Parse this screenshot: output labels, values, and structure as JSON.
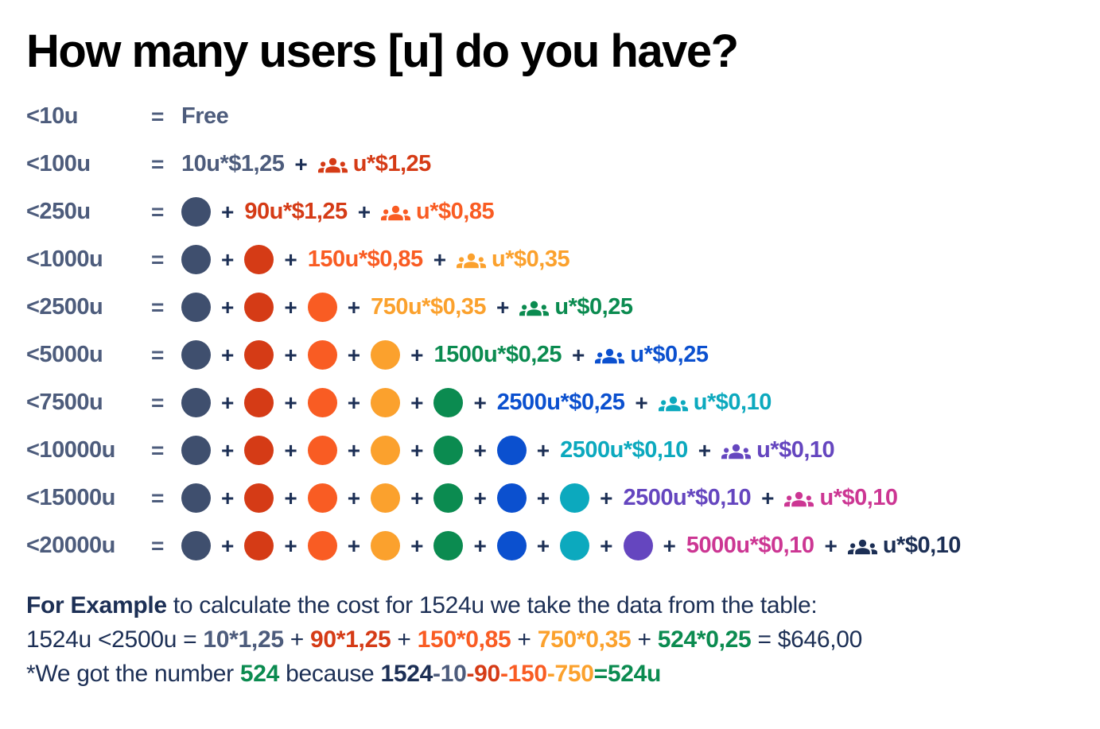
{
  "title": "How many users [u] do you have?",
  "equals_sign": "=",
  "plus_sign": "+",
  "colors": {
    "navy": "#1C2F55",
    "slate": "#4D5C7C",
    "slateDot": "#3F4F6E",
    "red": "#D53B16",
    "orange": "#F95C23",
    "amber": "#FBA12D",
    "green": "#0B8B50",
    "blue": "#0B50CF",
    "teal": "#0CA9BE",
    "purple": "#6546BF",
    "pink": "#CC3693"
  },
  "rows": [
    {
      "label": "<10u",
      "items": [
        {
          "type": "formula",
          "text": "Free",
          "color": "slate"
        }
      ]
    },
    {
      "label": "<100u",
      "items": [
        {
          "type": "formula",
          "text": "10u*$1,25",
          "color": "slate"
        },
        {
          "type": "plus"
        },
        {
          "type": "group",
          "text": "u*$1,25",
          "color": "red"
        }
      ]
    },
    {
      "label": "<250u",
      "items": [
        {
          "type": "dot",
          "color": "slateDot"
        },
        {
          "type": "plus"
        },
        {
          "type": "formula",
          "text": "90u*$1,25",
          "color": "red"
        },
        {
          "type": "plus"
        },
        {
          "type": "group",
          "text": "u*$0,85",
          "color": "orange"
        }
      ]
    },
    {
      "label": "<1000u",
      "items": [
        {
          "type": "dot",
          "color": "slateDot"
        },
        {
          "type": "plus"
        },
        {
          "type": "dot",
          "color": "red"
        },
        {
          "type": "plus"
        },
        {
          "type": "formula",
          "text": "150u*$0,85",
          "color": "orange"
        },
        {
          "type": "plus"
        },
        {
          "type": "group",
          "text": "u*$0,35",
          "color": "amber"
        }
      ]
    },
    {
      "label": "<2500u",
      "items": [
        {
          "type": "dot",
          "color": "slateDot"
        },
        {
          "type": "plus"
        },
        {
          "type": "dot",
          "color": "red"
        },
        {
          "type": "plus"
        },
        {
          "type": "dot",
          "color": "orange"
        },
        {
          "type": "plus"
        },
        {
          "type": "formula",
          "text": "750u*$0,35",
          "color": "amber"
        },
        {
          "type": "plus"
        },
        {
          "type": "group",
          "text": "u*$0,25",
          "color": "green"
        }
      ]
    },
    {
      "label": "<5000u",
      "items": [
        {
          "type": "dot",
          "color": "slateDot"
        },
        {
          "type": "plus"
        },
        {
          "type": "dot",
          "color": "red"
        },
        {
          "type": "plus"
        },
        {
          "type": "dot",
          "color": "orange"
        },
        {
          "type": "plus"
        },
        {
          "type": "dot",
          "color": "amber"
        },
        {
          "type": "plus"
        },
        {
          "type": "formula",
          "text": "1500u*$0,25",
          "color": "green"
        },
        {
          "type": "plus"
        },
        {
          "type": "group",
          "text": "u*$0,25",
          "color": "blue"
        }
      ]
    },
    {
      "label": "<7500u",
      "items": [
        {
          "type": "dot",
          "color": "slateDot"
        },
        {
          "type": "plus"
        },
        {
          "type": "dot",
          "color": "red"
        },
        {
          "type": "plus"
        },
        {
          "type": "dot",
          "color": "orange"
        },
        {
          "type": "plus"
        },
        {
          "type": "dot",
          "color": "amber"
        },
        {
          "type": "plus"
        },
        {
          "type": "dot",
          "color": "green"
        },
        {
          "type": "plus"
        },
        {
          "type": "formula",
          "text": "2500u*$0,25",
          "color": "blue"
        },
        {
          "type": "plus"
        },
        {
          "type": "group",
          "text": "u*$0,10",
          "color": "teal"
        }
      ]
    },
    {
      "label": "<10000u",
      "items": [
        {
          "type": "dot",
          "color": "slateDot"
        },
        {
          "type": "plus"
        },
        {
          "type": "dot",
          "color": "red"
        },
        {
          "type": "plus"
        },
        {
          "type": "dot",
          "color": "orange"
        },
        {
          "type": "plus"
        },
        {
          "type": "dot",
          "color": "amber"
        },
        {
          "type": "plus"
        },
        {
          "type": "dot",
          "color": "green"
        },
        {
          "type": "plus"
        },
        {
          "type": "dot",
          "color": "blue"
        },
        {
          "type": "plus"
        },
        {
          "type": "formula",
          "text": "2500u*$0,10",
          "color": "teal"
        },
        {
          "type": "plus"
        },
        {
          "type": "group",
          "text": "u*$0,10",
          "color": "purple"
        }
      ]
    },
    {
      "label": "<15000u",
      "items": [
        {
          "type": "dot",
          "color": "slateDot"
        },
        {
          "type": "plus"
        },
        {
          "type": "dot",
          "color": "red"
        },
        {
          "type": "plus"
        },
        {
          "type": "dot",
          "color": "orange"
        },
        {
          "type": "plus"
        },
        {
          "type": "dot",
          "color": "amber"
        },
        {
          "type": "plus"
        },
        {
          "type": "dot",
          "color": "green"
        },
        {
          "type": "plus"
        },
        {
          "type": "dot",
          "color": "blue"
        },
        {
          "type": "plus"
        },
        {
          "type": "dot",
          "color": "teal"
        },
        {
          "type": "plus"
        },
        {
          "type": "formula",
          "text": "2500u*$0,10",
          "color": "purple"
        },
        {
          "type": "plus"
        },
        {
          "type": "group",
          "text": "u*$0,10",
          "color": "pink"
        }
      ]
    },
    {
      "label": "<20000u",
      "items": [
        {
          "type": "dot",
          "color": "slateDot"
        },
        {
          "type": "plus"
        },
        {
          "type": "dot",
          "color": "red"
        },
        {
          "type": "plus"
        },
        {
          "type": "dot",
          "color": "orange"
        },
        {
          "type": "plus"
        },
        {
          "type": "dot",
          "color": "amber"
        },
        {
          "type": "plus"
        },
        {
          "type": "dot",
          "color": "green"
        },
        {
          "type": "plus"
        },
        {
          "type": "dot",
          "color": "blue"
        },
        {
          "type": "plus"
        },
        {
          "type": "dot",
          "color": "teal"
        },
        {
          "type": "plus"
        },
        {
          "type": "dot",
          "color": "purple"
        },
        {
          "type": "plus"
        },
        {
          "type": "formula",
          "text": "5000u*$0,10",
          "color": "pink"
        },
        {
          "type": "plus"
        },
        {
          "type": "group",
          "text": "u*$0,10",
          "color": "navy"
        }
      ]
    }
  ],
  "example": {
    "lines": [
      [
        {
          "text": "For Example",
          "color": "navy",
          "bold": true
        },
        {
          "text": " to calculate the cost for 1524u we take the data from the table:",
          "color": "navy",
          "bold": false
        }
      ],
      [
        {
          "text": "1524u <2500u = ",
          "color": "navy",
          "bold": false
        },
        {
          "text": "10*1,25",
          "color": "slate",
          "bold": true
        },
        {
          "text": " + ",
          "color": "navy",
          "bold": false
        },
        {
          "text": "90*1,25",
          "color": "red",
          "bold": true
        },
        {
          "text": " + ",
          "color": "navy",
          "bold": false
        },
        {
          "text": "150*0,85",
          "color": "orange",
          "bold": true
        },
        {
          "text": " + ",
          "color": "navy",
          "bold": false
        },
        {
          "text": "750*0,35",
          "color": "amber",
          "bold": true
        },
        {
          "text": " + ",
          "color": "navy",
          "bold": false
        },
        {
          "text": "524*0,25",
          "color": "green",
          "bold": true
        },
        {
          "text": " = $646,00",
          "color": "navy",
          "bold": false
        }
      ],
      [
        {
          "text": "*We got the number ",
          "color": "navy",
          "bold": false
        },
        {
          "text": "524",
          "color": "green",
          "bold": true
        },
        {
          "text": " because ",
          "color": "navy",
          "bold": false
        },
        {
          "text": "1524",
          "color": "navy",
          "bold": true
        },
        {
          "text": "-10",
          "color": "slate",
          "bold": true
        },
        {
          "text": "-90",
          "color": "red",
          "bold": true
        },
        {
          "text": "-150",
          "color": "orange",
          "bold": true
        },
        {
          "text": "-750",
          "color": "amber",
          "bold": true
        },
        {
          "text": "=524u",
          "color": "green",
          "bold": true
        }
      ]
    ]
  }
}
